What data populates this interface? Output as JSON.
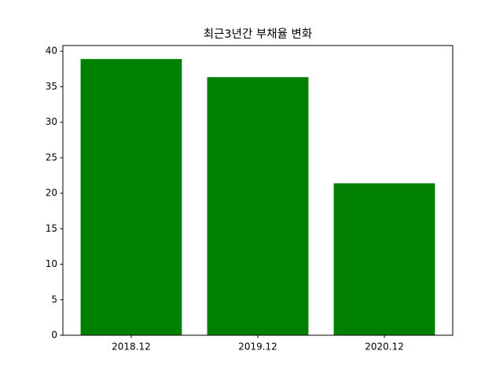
{
  "chart_data": {
    "type": "bar",
    "title": "최근3년간 부채율 변화",
    "categories": [
      "2018.12",
      "2019.12",
      "2020.12"
    ],
    "values": [
      38.9,
      36.35,
      21.4
    ],
    "color": "#008000",
    "ylim": [
      0,
      40.8
    ],
    "yticks": [
      0,
      5,
      10,
      15,
      20,
      25,
      30,
      35,
      40
    ]
  }
}
